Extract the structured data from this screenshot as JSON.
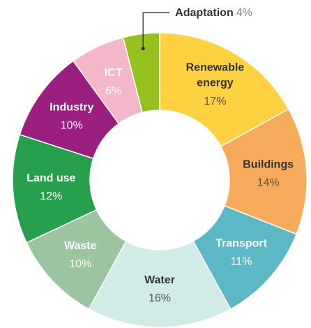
{
  "chart_data": {
    "type": "donut",
    "categories": [
      "Renewable energy",
      "Buildings",
      "Transport",
      "Water",
      "Waste",
      "Land use",
      "Industry",
      "ICT",
      "Adaptation"
    ],
    "values": [
      17,
      14,
      11,
      16,
      10,
      12,
      10,
      6,
      4
    ],
    "value_labels": [
      "17%",
      "14%",
      "11%",
      "16%",
      "10%",
      "12%",
      "10%",
      "6%",
      "4%"
    ],
    "colors": [
      "#fdd13f",
      "#f6ab5b",
      "#5db8c6",
      "#d3ebe7",
      "#9dc4a0",
      "#27a04d",
      "#9b1f7e",
      "#f4b6c9",
      "#95c11f"
    ]
  }
}
